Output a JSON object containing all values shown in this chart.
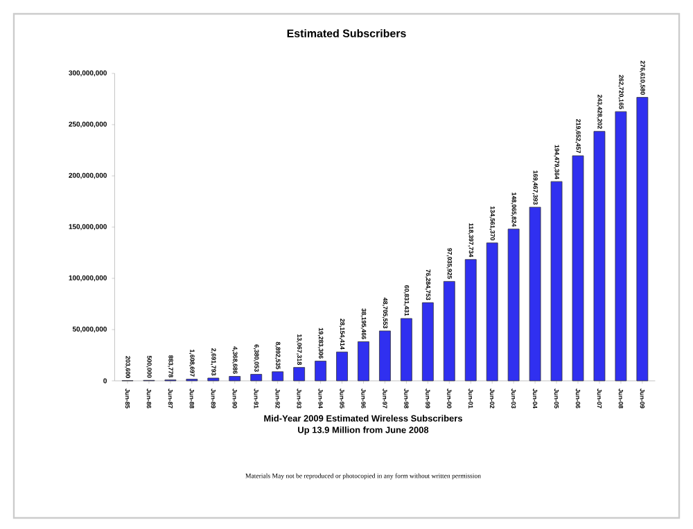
{
  "chart_data": {
    "type": "bar",
    "title": "Estimated Subscribers",
    "categories": [
      "Jun-85",
      "Jun-86",
      "Jun-87",
      "Jun-88",
      "Jun-89",
      "Jun-90",
      "Jun-91",
      "Jun-92",
      "Jun-93",
      "Jun-94",
      "Jun-95",
      "Jun-96",
      "Jun-97",
      "Jun-98",
      "Jun-99",
      "Jun-00",
      "Jun-01",
      "Jun-02",
      "Jun-03",
      "Jun-04",
      "Jun-05",
      "Jun-06",
      "Jun-07",
      "Jun-08",
      "Jun-09"
    ],
    "values": [
      203600,
      500000,
      883778,
      1608697,
      2691793,
      4368686,
      6380053,
      8892535,
      13067318,
      19283306,
      28154414,
      38195466,
      48705553,
      60831431,
      76284753,
      97035925,
      118397734,
      134561370,
      148065824,
      169467393,
      194479364,
      219652457,
      243428202,
      262720165,
      276610580
    ],
    "value_labels": [
      "203,600",
      "500,000",
      "883,778",
      "1,608,697",
      "2,691,793",
      "4,368,686",
      "6,380,053",
      "8,892,535",
      "13,067,318",
      "19,283,306",
      "28,154,414",
      "38,195,466",
      "48,705,553",
      "60,831,431",
      "76,284,753",
      "97,035,925",
      "118,397,734",
      "134,561,370",
      "148,065,824",
      "169,467,393",
      "194,479,364",
      "219,652,457",
      "243,428,202",
      "262,720,165",
      "276,610,580"
    ],
    "color": "#3030f0",
    "ylim": [
      0,
      300000000
    ],
    "yticks": [
      0,
      {
        "value": 50000000,
        "label": "50,000,000"
      },
      {
        "value": 100000000,
        "label": "100,000,000"
      },
      {
        "value": 150000000,
        "label": "150,000,000"
      },
      {
        "value": 200000000,
        "label": "200,000,000"
      },
      {
        "value": 250000000,
        "label": "250,000,000"
      },
      {
        "value": 300000000,
        "label": "300,000,000"
      }
    ],
    "annotations": [
      "Mid-Year 2009 Estimated Wireless Subscribers",
      "Up 13.9 Million from June 2008",
      "Materials May not be reproduced or photocopied in any form without written permission"
    ]
  }
}
